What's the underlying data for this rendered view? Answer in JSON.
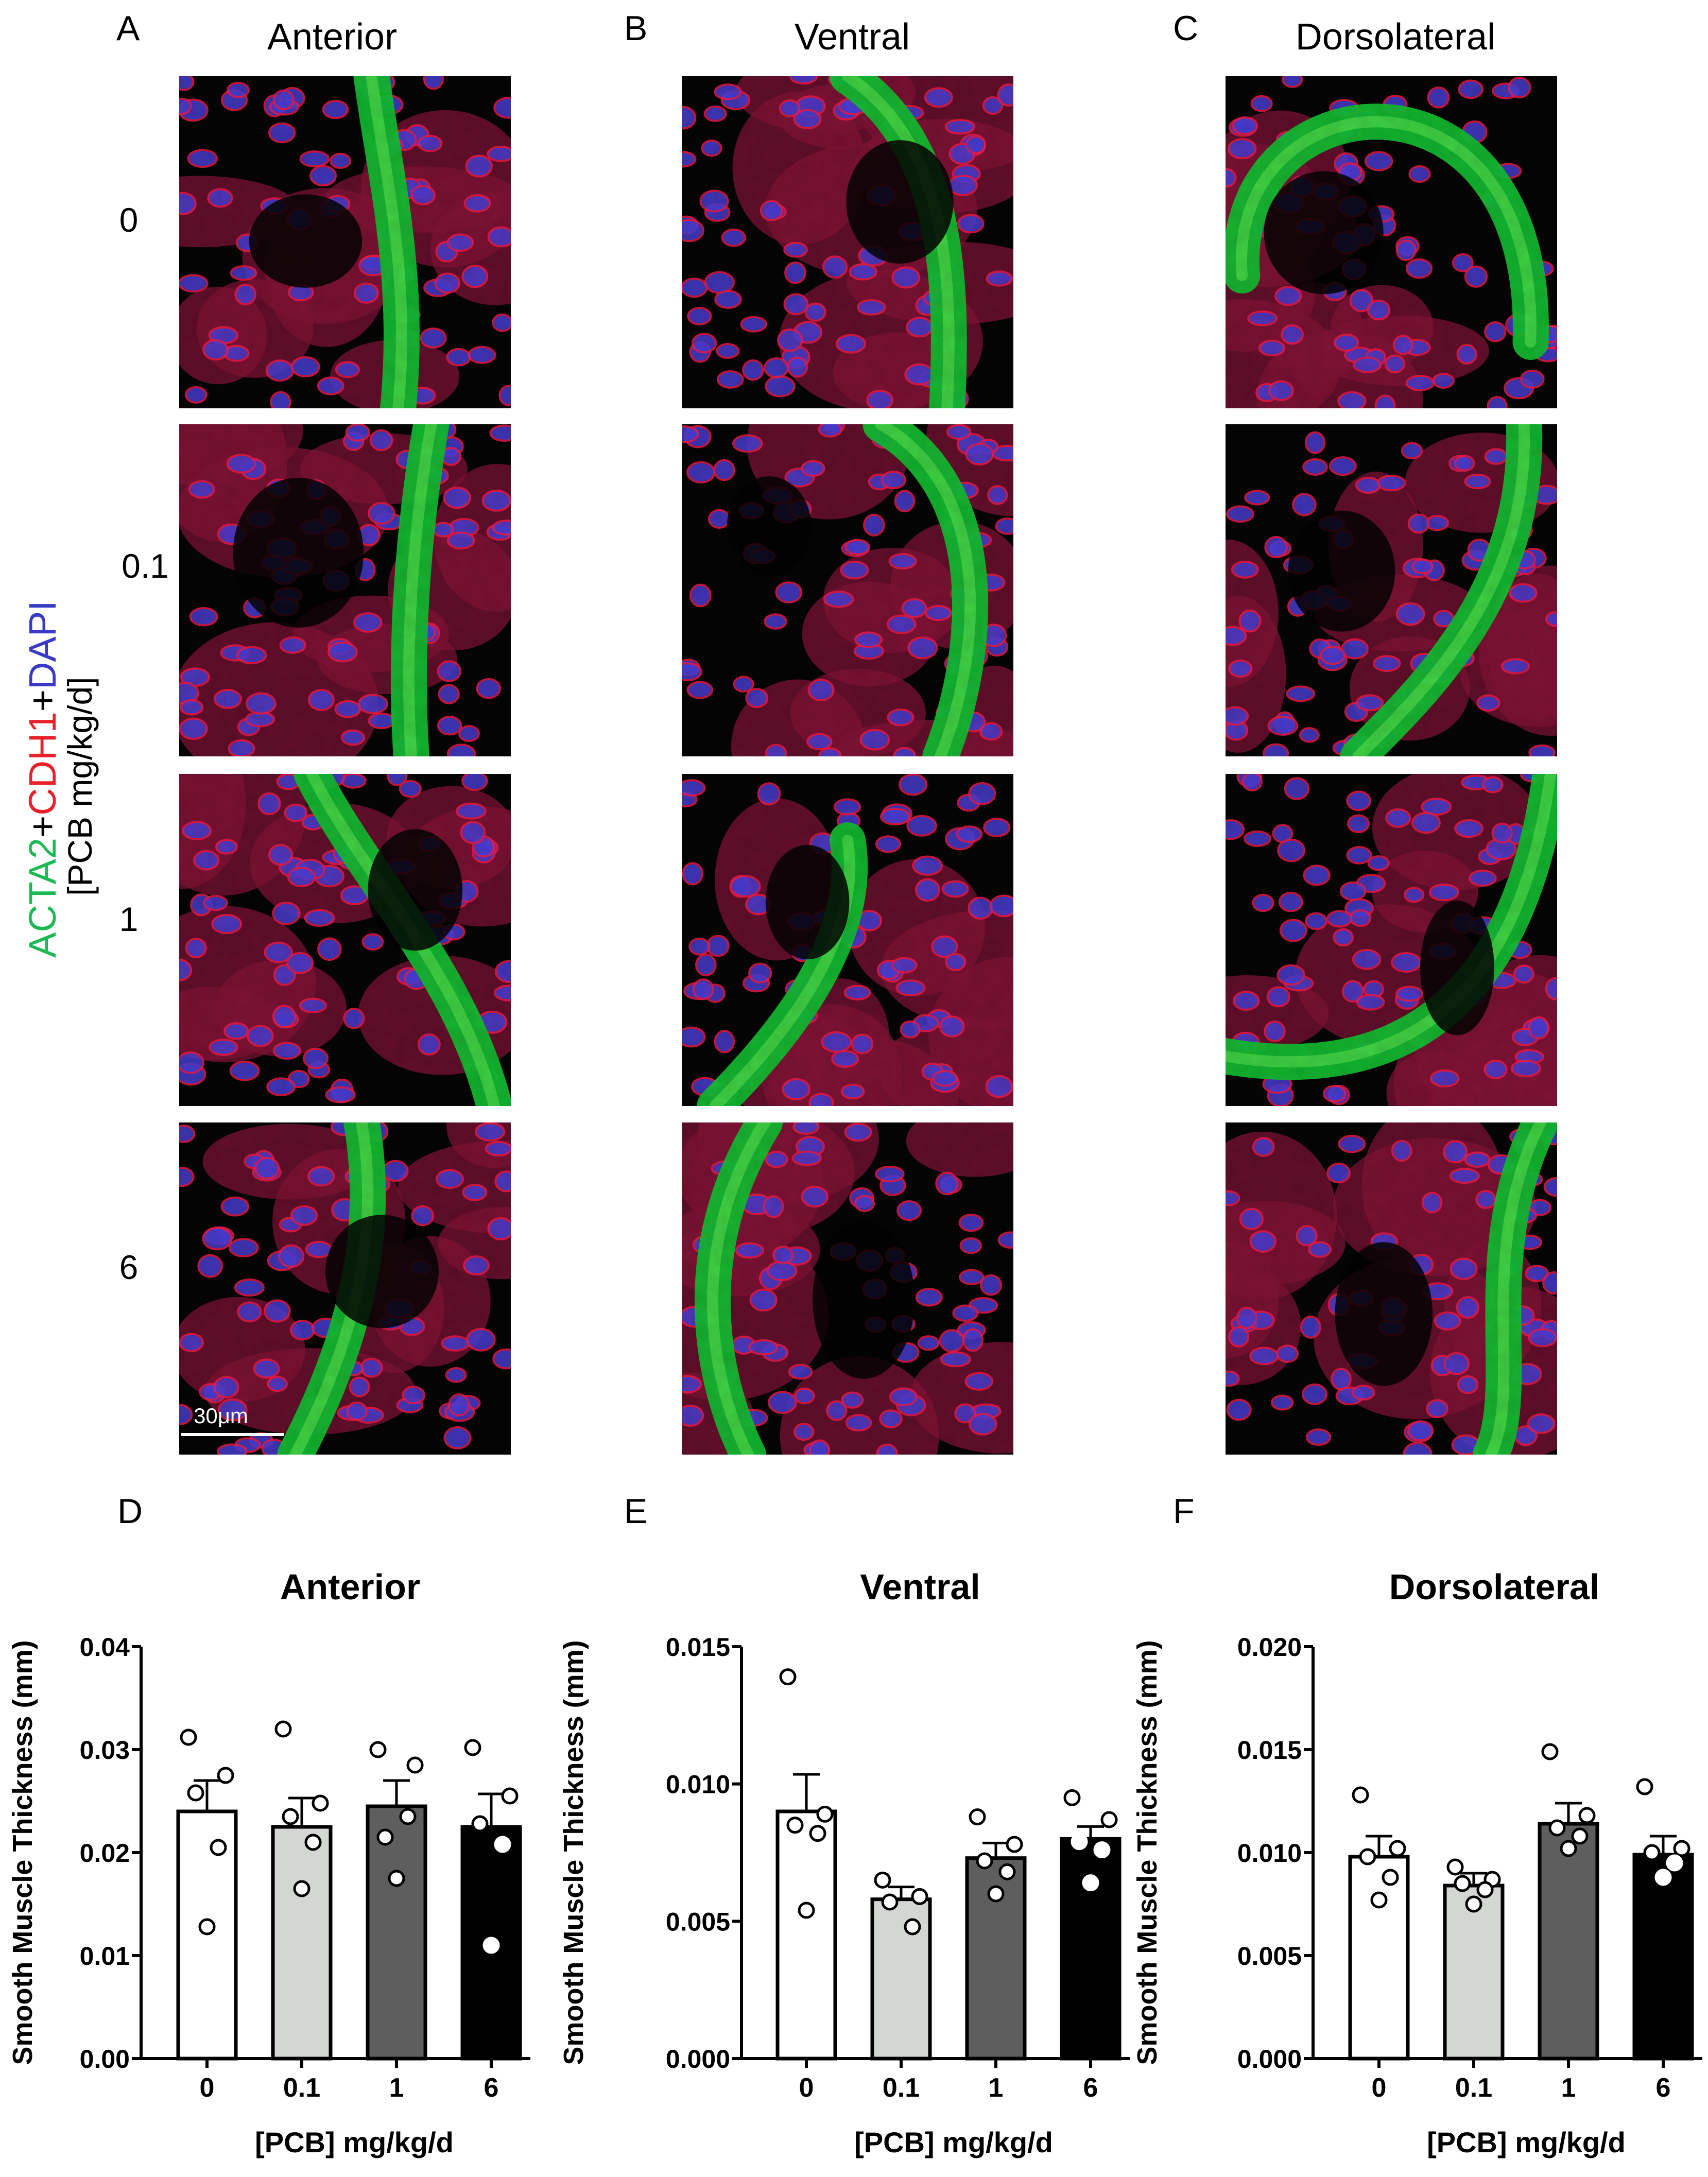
{
  "micrographs": {
    "panel_letters": [
      "A",
      "B",
      "C"
    ],
    "column_titles": [
      "Anterior",
      "Ventral",
      "Dorsolateral"
    ],
    "row_labels": [
      "0",
      "0.1",
      "1",
      "6"
    ],
    "stain_label": {
      "acta2": "ACTA2",
      "plus1": "+",
      "cdh1": "CDH1",
      "plus2": "+",
      "dapi": "DAPI",
      "dose": "[PCB mg/kg/d]"
    },
    "stain_colors": {
      "acta2": "#1db954",
      "cdh1": "#e8202a",
      "dapi": "#3a3ac8"
    },
    "scale_bar_label": "30μm"
  },
  "chart_data": [
    {
      "panel": "D",
      "type": "bar",
      "title": "Anterior",
      "xlabel": "[PCB] mg/kg/d",
      "ylabel": "Smooth Muscle Thickness (mm)",
      "categories": [
        "0",
        "0.1",
        "1",
        "6"
      ],
      "values": [
        0.024,
        0.0225,
        0.0245,
        0.0225
      ],
      "sem": [
        0.003,
        0.0028,
        0.0025,
        0.0032
      ],
      "points": [
        [
          0.0312,
          0.0275,
          0.0258,
          0.0205,
          0.0128
        ],
        [
          0.032,
          0.0248,
          0.0235,
          0.021,
          0.0165
        ],
        [
          0.03,
          0.0285,
          0.0215,
          0.0235,
          0.0175
        ],
        [
          0.0302,
          0.0255,
          0.0228,
          0.0208,
          0.011
        ]
      ],
      "ylim": [
        0,
        0.04
      ],
      "yticks": [
        "0.00",
        "0.01",
        "0.02",
        "0.03",
        "0.04"
      ],
      "bar_colors": [
        "#ffffff",
        "#d4d6d4",
        "#5e5e5e",
        "#000000"
      ]
    },
    {
      "panel": "E",
      "type": "bar",
      "title": "Ventral",
      "xlabel": "[PCB] mg/kg/d",
      "ylabel": "Smooth Muscle Thickness (mm)",
      "categories": [
        "0",
        "0.1",
        "1",
        "6"
      ],
      "values": [
        0.009,
        0.0058,
        0.0073,
        0.008
      ],
      "sem": [
        0.00135,
        0.00045,
        0.00055,
        0.00045
      ],
      "points": [
        [
          0.0139,
          0.0089,
          0.0085,
          0.0082,
          0.0054
        ],
        [
          0.0065,
          0.0059,
          0.0057,
          0.0048
        ],
        [
          0.0088,
          0.0078,
          0.0072,
          0.0068,
          0.006
        ],
        [
          0.0095,
          0.0087,
          0.0079,
          0.0076,
          0.0064
        ]
      ],
      "ylim": [
        0,
        0.015
      ],
      "yticks": [
        "0.000",
        "0.005",
        "0.010",
        "0.015"
      ],
      "bar_colors": [
        "#ffffff",
        "#d4d6d4",
        "#5e5e5e",
        "#000000"
      ]
    },
    {
      "panel": "F",
      "type": "bar",
      "title": "Dorsolateral",
      "xlabel": "[PCB] mg/kg/d",
      "ylabel": "Smooth Muscle Thickness (mm)",
      "categories": [
        "0",
        "0.1",
        "1",
        "6"
      ],
      "values": [
        0.0098,
        0.0084,
        0.0114,
        0.0099
      ],
      "sem": [
        0.001,
        0.0006,
        0.001,
        0.0009
      ],
      "points": [
        [
          0.0128,
          0.0102,
          0.0098,
          0.0088,
          0.0077
        ],
        [
          0.0093,
          0.0087,
          0.0085,
          0.0082,
          0.0075
        ],
        [
          0.0149,
          0.0118,
          0.0112,
          0.0108,
          0.0102
        ],
        [
          0.0132,
          0.0102,
          0.01,
          0.0095,
          0.0088
        ]
      ],
      "ylim": [
        0,
        0.02
      ],
      "yticks": [
        "0.000",
        "0.005",
        "0.010",
        "0.015",
        "0.020"
      ],
      "bar_colors": [
        "#ffffff",
        "#d4d6d4",
        "#5e5e5e",
        "#000000"
      ]
    }
  ]
}
